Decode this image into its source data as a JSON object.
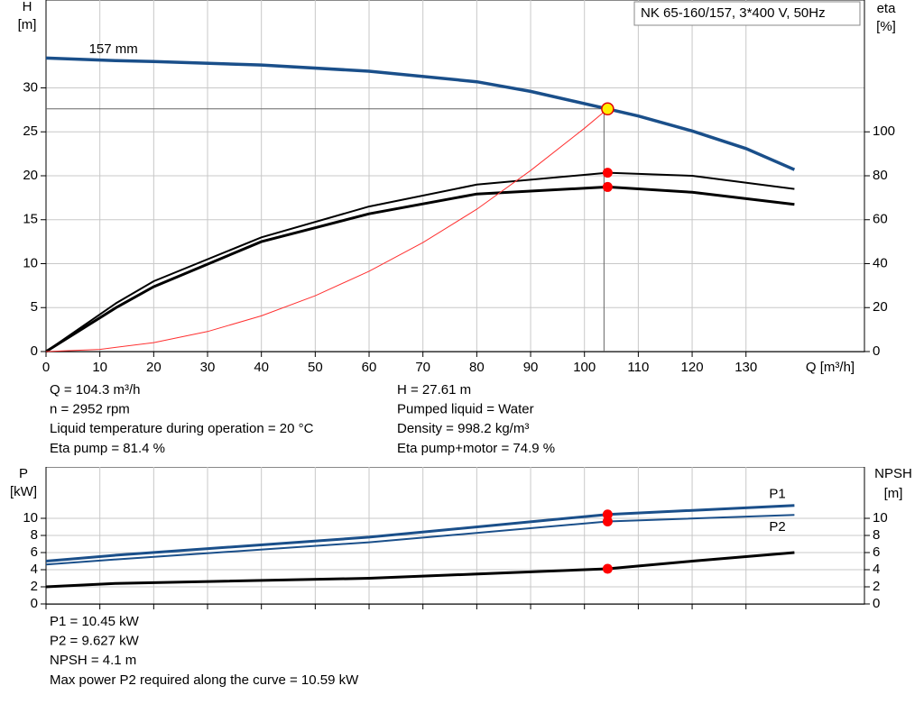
{
  "chart_data": [
    {
      "type": "line",
      "title": "NK 65-160/157, 3*400 V, 50Hz",
      "ylabel": "H",
      "yunit": "[m]",
      "y2label": "eta",
      "y2unit": "[%]",
      "xlabel": "Q [m³/h]",
      "xlim": [
        0,
        152
      ],
      "xticks": [
        0,
        10,
        20,
        30,
        40,
        50,
        60,
        70,
        80,
        90,
        100,
        110,
        120,
        130
      ],
      "show_xtick_labels": true,
      "ylim": [
        0,
        40
      ],
      "yticks": [
        0,
        5,
        10,
        15,
        20,
        25,
        30
      ],
      "y2lim": [
        0,
        160
      ],
      "y2ticks": [
        0,
        20,
        40,
        60,
        80,
        100
      ],
      "grid": true,
      "series": [
        {
          "label": "157 mm",
          "color": "#1a4f8a",
          "width": 3.5,
          "x": [
            0,
            13,
            20,
            40,
            60,
            80,
            90,
            104.3,
            110,
            120,
            130,
            139
          ],
          "values": [
            33.4,
            33.1,
            33.0,
            32.6,
            31.9,
            30.7,
            29.6,
            27.61,
            26.8,
            25.1,
            23.1,
            20.7
          ]
        },
        {
          "color": "#000000",
          "width": 2,
          "axis": "y2",
          "x": [
            0,
            13,
            20,
            40,
            60,
            80,
            104.3,
            120,
            139
          ],
          "values": [
            0,
            22,
            32,
            52,
            66,
            76,
            81.4,
            80,
            74
          ]
        },
        {
          "color": "#000000",
          "width": 3,
          "axis": "y2",
          "x": [
            0,
            13,
            20,
            40,
            60,
            80,
            104.3,
            120,
            139
          ],
          "values": [
            0,
            20,
            29.5,
            50,
            62.7,
            71.7,
            74.9,
            72.5,
            67
          ]
        },
        {
          "color": "#ff3030",
          "width": 1,
          "x": [
            0,
            10,
            20,
            30,
            40,
            50,
            60,
            70,
            80,
            90,
            100,
            104.3
          ],
          "values": [
            0,
            0.25,
            1.02,
            2.28,
            4.06,
            6.35,
            9.14,
            12.4,
            16.2,
            20.6,
            25.4,
            27.61
          ]
        }
      ],
      "markers": [
        {
          "x": 104.3,
          "y": 27.61,
          "color": "#ffee00",
          "crosshair": true
        },
        {
          "x": 104.3,
          "y": 81.4,
          "axis": "y2",
          "color": "#ff0000"
        },
        {
          "x": 104.3,
          "y": 74.9,
          "axis": "y2",
          "color": "#ff0000"
        }
      ],
      "notes": [
        [
          "Q = 104.3 m³/h",
          "n = 2952 rpm",
          "Liquid temperature during operation = 20 °C",
          "Eta pump = 81.4 %"
        ],
        [
          "H = 27.61 m",
          "Pumped liquid = Water",
          "Density = 998.2 kg/m³",
          "Eta pump+motor = 74.9 %"
        ]
      ]
    },
    {
      "type": "line",
      "ylabel": "P",
      "yunit": "[kW]",
      "y2label": "NPSH",
      "y2unit": "[m]",
      "xlim": [
        0,
        152
      ],
      "xticks": [
        0,
        10,
        20,
        30,
        40,
        50,
        60,
        70,
        80,
        90,
        100,
        110,
        120,
        130
      ],
      "show_xtick_labels": false,
      "ylim": [
        0,
        16
      ],
      "yticks": [
        0,
        2,
        4,
        6,
        8,
        10
      ],
      "y2lim": [
        0,
        16
      ],
      "y2ticks": [
        0,
        2,
        4,
        6,
        8,
        10
      ],
      "grid": true,
      "series": [
        {
          "name": "P1",
          "color": "#1a4f8a",
          "width": 3,
          "x": [
            0,
            13,
            60,
            104.3,
            139
          ],
          "values": [
            5.0,
            5.7,
            7.8,
            10.45,
            11.5
          ]
        },
        {
          "name": "P2",
          "color": "#1a4f8a",
          "width": 2,
          "x": [
            0,
            13,
            60,
            104.3,
            139
          ],
          "values": [
            4.6,
            5.2,
            7.2,
            9.627,
            10.4
          ]
        },
        {
          "color": "#000000",
          "width": 3,
          "axis": "y2",
          "x": [
            0,
            13,
            60,
            104.3,
            120,
            139
          ],
          "values": [
            2.0,
            2.4,
            3.0,
            4.1,
            5.0,
            6.0
          ]
        }
      ],
      "markers": [
        {
          "x": 104.3,
          "y": 10.45,
          "color": "#ff0000"
        },
        {
          "x": 104.3,
          "y": 9.627,
          "color": "#ff0000"
        },
        {
          "x": 104.3,
          "y": 4.1,
          "axis": "y2",
          "color": "#ff0000"
        }
      ],
      "notes": [
        [
          "P1 = 10.45 kW",
          "P2 = 9.627 kW",
          "NPSH = 4.1 m",
          "Max power P2 required along the curve = 10.59 kW"
        ]
      ]
    }
  ]
}
